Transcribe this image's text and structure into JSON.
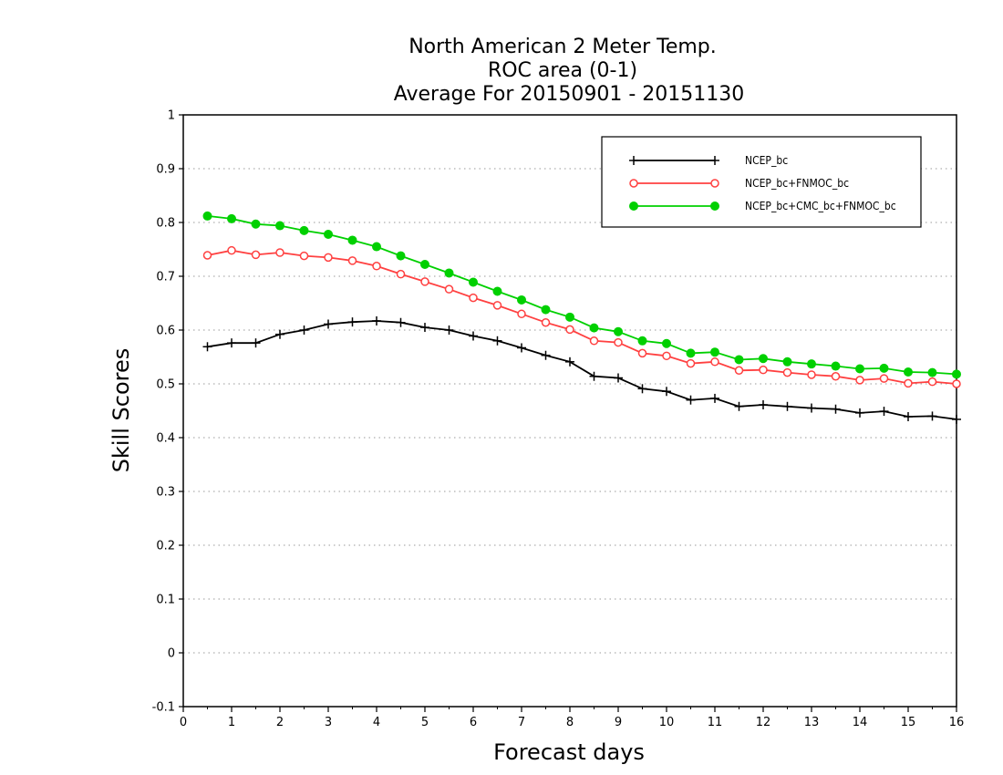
{
  "chart_data": {
    "type": "line",
    "title": [
      "North American 2 Meter Temp.",
      "ROC area (0-1)",
      "Average For 20150901 - 20151130"
    ],
    "xlabel": "Forecast days",
    "ylabel": "Skill Scores",
    "xlim": [
      0,
      16
    ],
    "ylim": [
      -0.1,
      1
    ],
    "xticks": [
      0,
      1,
      2,
      3,
      4,
      5,
      6,
      7,
      8,
      9,
      10,
      11,
      12,
      13,
      14,
      15,
      16
    ],
    "yticks": [
      -0.1,
      0,
      0.1,
      0.2,
      0.3,
      0.4,
      0.5,
      0.6,
      0.7,
      0.8,
      0.9,
      1
    ],
    "ytick_labels": [
      "-0.1",
      "0",
      "0.1",
      "0.2",
      "0.3",
      "0.4",
      "0.5",
      "0.6",
      "0.7",
      "0.8",
      "0.9",
      "1"
    ],
    "grid": "horizontal-dotted",
    "legend_position": "top-right",
    "x": [
      0.5,
      1.0,
      1.5,
      2.0,
      2.5,
      3.0,
      3.5,
      4.0,
      4.5,
      5.0,
      5.5,
      6.0,
      6.5,
      7.0,
      7.5,
      8.0,
      8.5,
      9.0,
      9.5,
      10.0,
      10.5,
      11.0,
      11.5,
      12.0,
      12.5,
      13.0,
      13.5,
      14.0,
      14.5,
      15.0,
      15.5,
      16.0
    ],
    "series": [
      {
        "name": "NCEP_bc",
        "color": "#000000",
        "marker": "plus",
        "values": [
          0.569,
          0.576,
          0.576,
          0.592,
          0.6,
          0.611,
          0.615,
          0.617,
          0.614,
          0.605,
          0.6,
          0.589,
          0.58,
          0.567,
          0.553,
          0.541,
          0.514,
          0.511,
          0.491,
          0.486,
          0.47,
          0.473,
          0.458,
          0.461,
          0.458,
          0.455,
          0.453,
          0.446,
          0.449,
          0.439,
          0.44,
          0.434
        ]
      },
      {
        "name": "NCEP_bc+FNMOC_bc",
        "color": "#ff4040",
        "marker": "open-circle",
        "values": [
          0.739,
          0.748,
          0.74,
          0.744,
          0.738,
          0.735,
          0.729,
          0.719,
          0.704,
          0.69,
          0.676,
          0.66,
          0.646,
          0.63,
          0.614,
          0.601,
          0.58,
          0.577,
          0.557,
          0.552,
          0.538,
          0.541,
          0.525,
          0.526,
          0.521,
          0.517,
          0.514,
          0.507,
          0.51,
          0.501,
          0.504,
          0.5
        ]
      },
      {
        "name": "NCEP_bc+CMC_bc+FNMOC_bc",
        "color": "#00d000",
        "marker": "filled-circle",
        "values": [
          0.812,
          0.807,
          0.797,
          0.794,
          0.785,
          0.778,
          0.767,
          0.755,
          0.738,
          0.722,
          0.706,
          0.689,
          0.672,
          0.656,
          0.638,
          0.624,
          0.604,
          0.597,
          0.58,
          0.575,
          0.557,
          0.559,
          0.545,
          0.547,
          0.541,
          0.537,
          0.533,
          0.528,
          0.529,
          0.522,
          0.521,
          0.518
        ]
      }
    ]
  }
}
